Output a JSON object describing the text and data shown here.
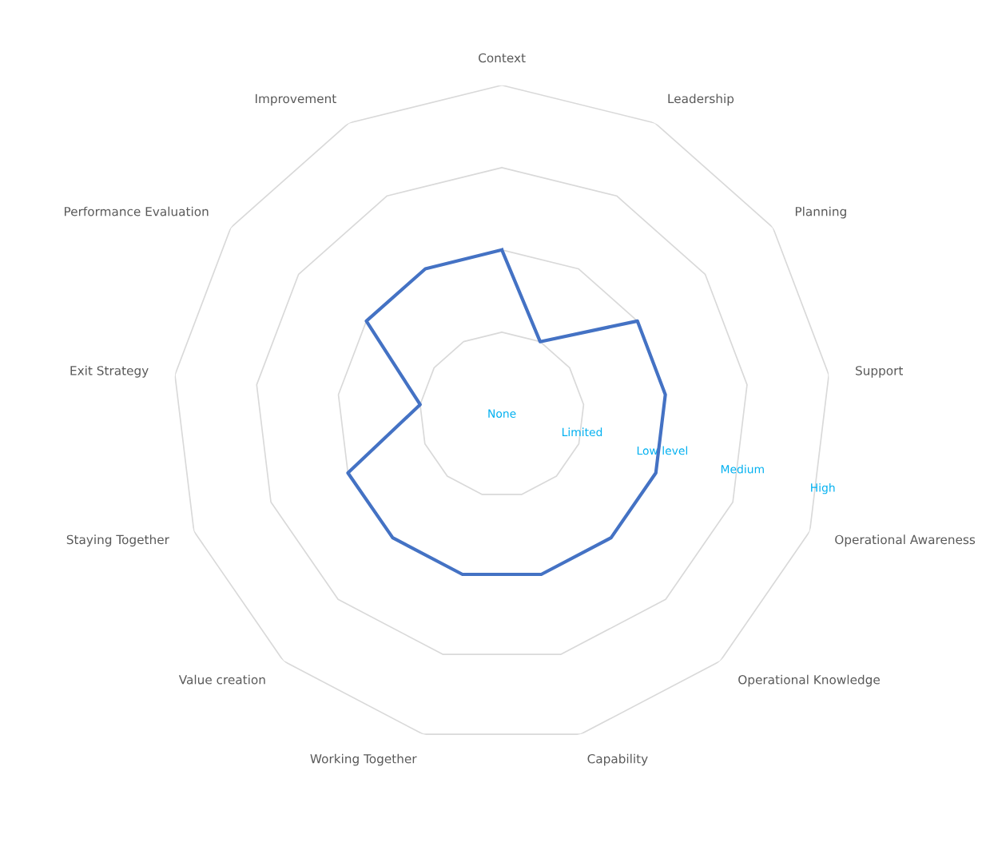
{
  "chart_data": {
    "type": "radar",
    "categories": [
      "Context",
      "Leadership",
      "Planning",
      "Support",
      "Operational Awareness",
      "Operational Knowledge",
      "Capability",
      "Working Together",
      "Value creation",
      "Staying Together",
      "Exit Strategy",
      "Performance Evaluation",
      "Improvement"
    ],
    "series": [
      {
        "color": "#4472c4",
        "values": [
          2,
          1,
          2,
          2,
          2,
          2,
          2,
          2,
          2,
          2,
          1,
          2,
          2
        ]
      }
    ],
    "ylim": [
      0,
      4
    ],
    "yticks": [
      {
        "value": 0,
        "label": "None"
      },
      {
        "value": 1,
        "label": "Limited"
      },
      {
        "value": 2,
        "label": "Low level"
      },
      {
        "value": 3,
        "label": "Medium"
      },
      {
        "value": 4,
        "label": "High"
      }
    ],
    "grid": true,
    "marker": "none",
    "line_style": "solid"
  }
}
